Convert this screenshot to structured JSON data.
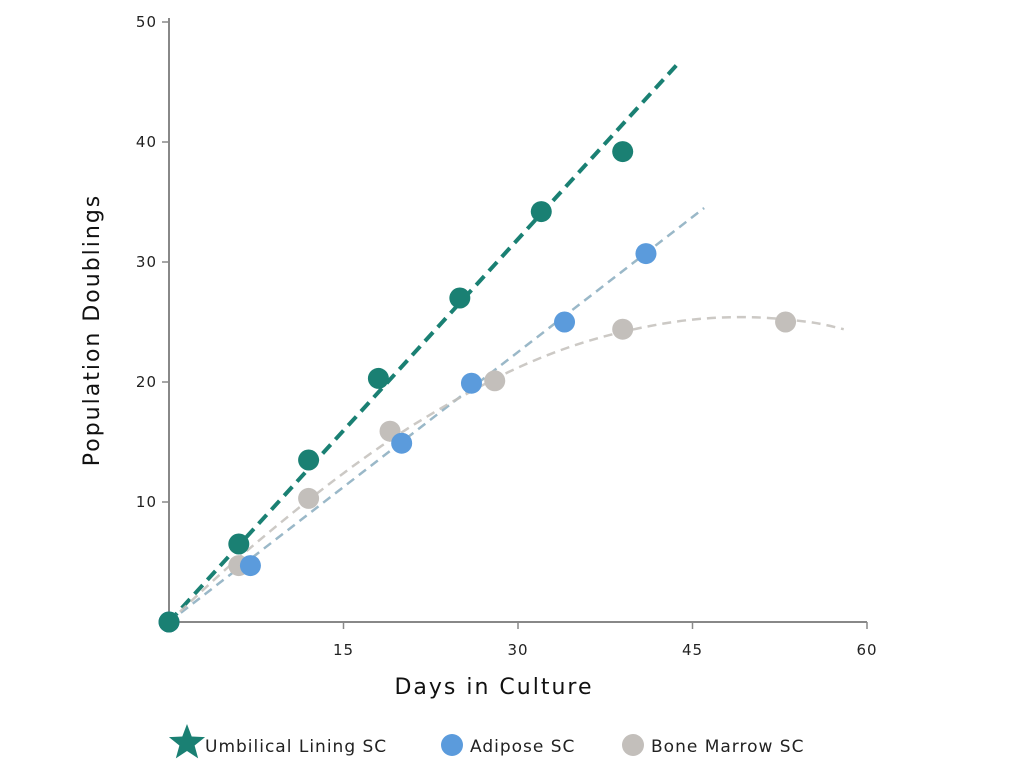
{
  "chart_data": {
    "type": "scatter",
    "title": "",
    "xlabel": "Days in Culture",
    "ylabel": "Population Doublings",
    "xlim": [
      0,
      60
    ],
    "ylim": [
      0,
      50
    ],
    "xticks": [
      15,
      30,
      45,
      60
    ],
    "yticks": [
      10,
      20,
      30,
      40,
      50
    ],
    "grid": false,
    "legend_position": "bottom",
    "series": [
      {
        "name": "Umbilical Lining SC",
        "color": "#1a8073",
        "marker": "star-icon",
        "x": [
          0,
          6,
          12,
          18,
          25,
          32,
          39
        ],
        "y": [
          0,
          6.5,
          13.5,
          20.3,
          27,
          34.2,
          39.2
        ],
        "trend": {
          "x": [
            0,
            44
          ],
          "y": [
            0,
            46.8
          ]
        }
      },
      {
        "name": "Adipose SC",
        "color": "#5b9bdc",
        "marker": "circle-icon",
        "x": [
          0,
          7,
          20,
          26,
          34,
          41
        ],
        "y": [
          0,
          4.7,
          14.9,
          19.9,
          25,
          30.7
        ],
        "trend": {
          "x": [
            0,
            46
          ],
          "y": [
            0,
            34.5
          ]
        }
      },
      {
        "name": "Bone Marrow SC",
        "color": "#c3bfbb",
        "marker": "circle-icon",
        "x": [
          0,
          6,
          12,
          19,
          28,
          39,
          53
        ],
        "y": [
          0,
          4.7,
          10.3,
          15.9,
          20.1,
          24.4,
          25
        ],
        "trend": {
          "x": [
            0,
            5,
            10,
            15,
            20,
            25,
            30,
            35,
            40,
            45,
            50,
            55,
            58
          ],
          "y": [
            0,
            4.5,
            8.6,
            12.4,
            15.8,
            18.7,
            21.2,
            23.1,
            24.4,
            25.2,
            25.4,
            25,
            24.4
          ]
        }
      }
    ]
  }
}
